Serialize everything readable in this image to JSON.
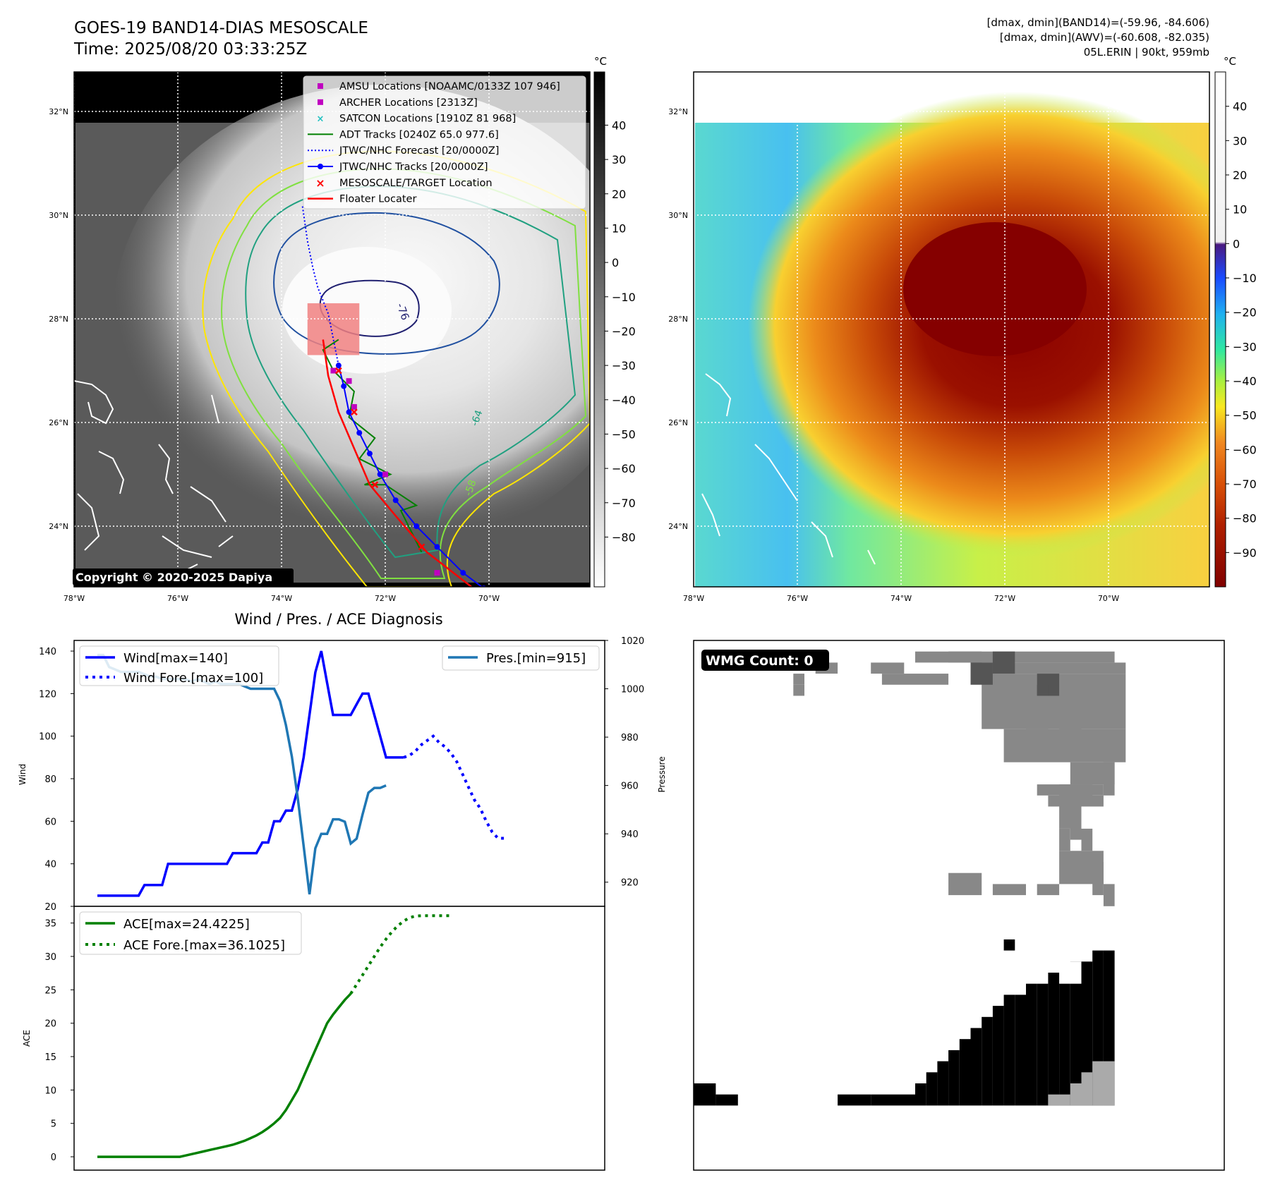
{
  "header": {
    "title": "GOES-19 BAND14-DIAS MESOSCALE",
    "time": "Time: 2025/08/20 03:33:25Z",
    "stat_band14": "[dmax, dmin](BAND14)=(-59.96, -84.606)",
    "stat_awv": "[dmax, dmin](AWV)=(-60.608, -82.035)",
    "storm": "05L.ERIN | 90kt, 959mb"
  },
  "map": {
    "lat_ticks": [
      "32°N",
      "30°N",
      "28°N",
      "26°N",
      "24°N"
    ],
    "lon_ticks": [
      "78°W",
      "76°W",
      "74°W",
      "72°W",
      "70°W"
    ],
    "copyright": "Copyright © 2020-2025 Dapiya",
    "contour_label_a": "-76",
    "contour_label_b": "-64",
    "contour_label_c": "-58",
    "legend": [
      "AMSU Locations [NOAAMC/0133Z 107 946]",
      "ARCHER Locations [2313Z]",
      "SATCON Locations [1910Z 81 968]",
      "ADT Tracks [0240Z 65.0 977.6]",
      "JTWC/NHC Forecast [20/0000Z]",
      "JTWC/NHC Tracks [20/0000Z]",
      "MESOSCALE/TARGET Location",
      "Floater Locater"
    ],
    "track": {
      "nhc": [
        [
          -70.1,
          22.8
        ],
        [
          -70.5,
          23.1
        ],
        [
          -71.0,
          23.6
        ],
        [
          -71.4,
          24.0
        ],
        [
          -71.8,
          24.5
        ],
        [
          -72.1,
          25.0
        ],
        [
          -72.3,
          25.4
        ],
        [
          -72.5,
          25.8
        ],
        [
          -72.7,
          26.2
        ],
        [
          -72.8,
          26.7
        ],
        [
          -72.9,
          27.1
        ]
      ],
      "forecast": [
        [
          -72.9,
          27.1
        ],
        [
          -73.0,
          27.6
        ],
        [
          -73.1,
          28.1
        ],
        [
          -73.3,
          28.6
        ],
        [
          -73.4,
          29.0
        ],
        [
          -73.5,
          29.5
        ],
        [
          -73.6,
          30.2
        ]
      ],
      "floater": [
        [
          -70.3,
          22.8
        ],
        [
          -71.2,
          23.5
        ],
        [
          -71.8,
          24.2
        ],
        [
          -72.3,
          24.8
        ],
        [
          -72.6,
          25.5
        ],
        [
          -72.9,
          26.2
        ],
        [
          -73.1,
          26.9
        ],
        [
          -73.2,
          27.6
        ]
      ],
      "adt": [
        [
          -71.3,
          23.5
        ],
        [
          -71.7,
          24.3
        ],
        [
          -71.4,
          24.4
        ],
        [
          -72.0,
          24.8
        ],
        [
          -72.4,
          24.8
        ],
        [
          -71.9,
          25.0
        ],
        [
          -72.5,
          25.3
        ],
        [
          -72.2,
          25.7
        ],
        [
          -72.7,
          26.1
        ],
        [
          -72.6,
          26.6
        ],
        [
          -73.0,
          27.0
        ],
        [
          -73.2,
          27.4
        ],
        [
          -72.9,
          27.6
        ]
      ],
      "archer": [
        [
          -71.0,
          23.1
        ],
        [
          -72.0,
          25.0
        ],
        [
          -72.6,
          26.3
        ],
        [
          -72.7,
          26.8
        ],
        [
          -73.0,
          27.0
        ]
      ],
      "targets": [
        [
          -71.3,
          23.6
        ],
        [
          -72.2,
          24.8
        ],
        [
          -72.6,
          26.2
        ],
        [
          -72.9,
          27.0
        ]
      ],
      "target_box": {
        "lon": [
          -73.5,
          -72.5
        ],
        "lat": [
          27.3,
          28.3
        ]
      }
    }
  },
  "colorbar1": {
    "unit": "°C",
    "ticks": [
      "40",
      "30",
      "20",
      "10",
      "0",
      "−10",
      "−20",
      "−30",
      "−40",
      "−50",
      "−60",
      "−70",
      "−80"
    ]
  },
  "colorbar2": {
    "unit": "°C",
    "ticks": [
      "40",
      "30",
      "20",
      "10",
      "0",
      "−10",
      "−20",
      "−30",
      "−40",
      "−50",
      "−60",
      "−70",
      "−80",
      "−90"
    ]
  },
  "wmg": {
    "label": "WMG Count: 0",
    "gray_color": "#888888",
    "dark_color": "#555555",
    "black_color": "#000000",
    "light_color": "#aaaaaa"
  },
  "chart_data": [
    {
      "type": "line",
      "title": "Wind / Pres. / ACE Diagnosis",
      "ylabel": "Wind",
      "ylim": [
        20,
        145
      ],
      "yticks": [
        "140",
        "120",
        "100",
        "80",
        "60",
        "40",
        "20"
      ],
      "series": [
        {
          "name": "Wind[max=140]",
          "color": "#0000ff",
          "values": [
            25,
            25,
            25,
            25,
            25,
            25,
            25,
            25,
            30,
            30,
            30,
            30,
            40,
            40,
            40,
            40,
            40,
            40,
            40,
            40,
            40,
            40,
            40,
            45,
            45,
            45,
            45,
            45,
            50,
            50,
            60,
            60,
            65,
            65,
            75,
            90,
            110,
            130,
            140,
            125,
            110,
            110,
            110,
            110,
            115,
            120,
            120,
            110,
            100,
            90,
            90,
            90,
            90
          ]
        },
        {
          "name": "Wind Fore.[max=100]",
          "color": "#0000ff",
          "style": "dotted",
          "values": [
            90,
            91,
            93,
            96,
            98,
            100,
            97,
            95,
            92,
            88,
            82,
            76,
            70,
            66,
            60,
            55,
            52,
            52
          ]
        }
      ]
    },
    {
      "type": "line",
      "ylabel": "Pressure",
      "ylim": [
        910,
        1020
      ],
      "yticks": [
        "1020",
        "1000",
        "980",
        "960",
        "940",
        "920"
      ],
      "series": [
        {
          "name": "Pres.[min=915]",
          "color": "#1f77b4",
          "values": [
            1014,
            1014,
            1009,
            1008,
            1007,
            1007,
            1007,
            1007,
            1006,
            1005,
            1005,
            1004,
            1004,
            1004,
            1004,
            1004,
            1003,
            1004,
            1003,
            1002,
            1003,
            1002,
            1002,
            1002,
            1002,
            1001,
            1000,
            1000,
            1000,
            1000,
            1000,
            995,
            985,
            972,
            955,
            935,
            915,
            934,
            940,
            940,
            946,
            946,
            945,
            936,
            938,
            948,
            957,
            959,
            959,
            960
          ]
        }
      ]
    },
    {
      "type": "line",
      "ylabel": "ACE",
      "ylim": [
        -2,
        37.5
      ],
      "yticks": [
        "35",
        "30",
        "25",
        "20",
        "15",
        "10",
        "5",
        "0"
      ],
      "series": [
        {
          "name": "ACE[max=24.4225]",
          "color": "#008000",
          "values": [
            0,
            0,
            0,
            0,
            0,
            0,
            0,
            0,
            0,
            0,
            0,
            0,
            0,
            0,
            0,
            0.2,
            0.4,
            0.6,
            0.8,
            1,
            1.2,
            1.4,
            1.6,
            1.8,
            2.1,
            2.4,
            2.8,
            3.2,
            3.7,
            4.3,
            5,
            5.8,
            7,
            8.5,
            10,
            12,
            14,
            16,
            18,
            20,
            21.3,
            22.4,
            23.5,
            24.42
          ]
        },
        {
          "name": "ACE Fore.[max=36.1025]",
          "color": "#008000",
          "style": "dotted",
          "values": [
            24.42,
            25.8,
            27.2,
            28.6,
            30,
            31.4,
            32.6,
            33.7,
            34.6,
            35.3,
            35.8,
            36.05,
            36.1,
            36.1,
            36.1,
            36.1,
            36.1,
            36.1
          ]
        }
      ]
    }
  ]
}
